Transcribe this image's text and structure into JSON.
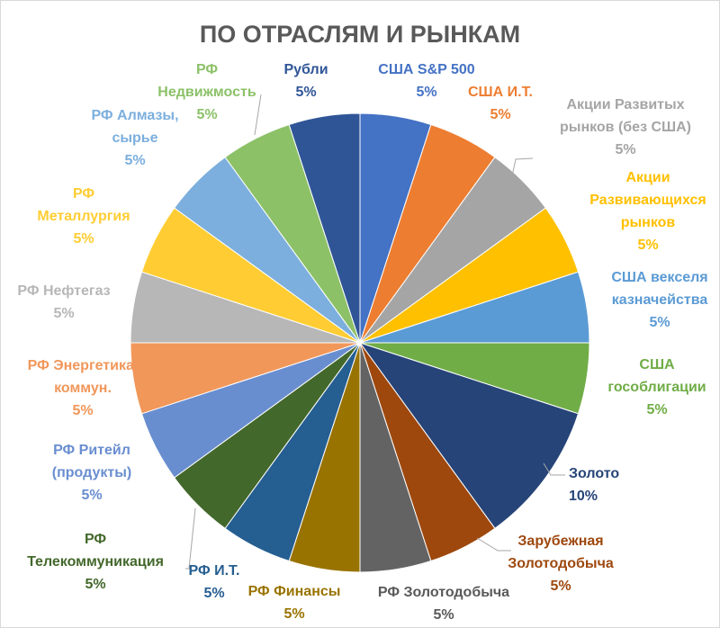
{
  "chart_data": {
    "type": "pie",
    "title": "ПО ОТРАСЛЯМ И РЫНКАМ",
    "slices": [
      {
        "label": [
          "США S&P 500"
        ],
        "value_label": "5%",
        "value": 5,
        "color": "#4472c4",
        "text_color": "#4472c4"
      },
      {
        "label": [
          "США И.Т."
        ],
        "value_label": "5%",
        "value": 5,
        "color": "#ed7d31",
        "text_color": "#ed7d31"
      },
      {
        "label": [
          "Акции Развитых",
          "рынков (без США)"
        ],
        "value_label": "5%",
        "value": 5,
        "color": "#a5a5a5",
        "text_color": "#a5a5a5"
      },
      {
        "label": [
          "Акции",
          "Развивающихся",
          "рынков"
        ],
        "value_label": "5%",
        "value": 5,
        "color": "#ffc000",
        "text_color": "#ffc000"
      },
      {
        "label": [
          "США векселя",
          "казначейства"
        ],
        "value_label": "5%",
        "value": 5,
        "color": "#5b9bd5",
        "text_color": "#5b9bd5"
      },
      {
        "label": [
          "США",
          "гособлигации"
        ],
        "value_label": "5%",
        "value": 5,
        "color": "#70ad47",
        "text_color": "#70ad47"
      },
      {
        "label": [
          "Золото"
        ],
        "value_label": "10%",
        "value": 10,
        "color": "#264478",
        "text_color": "#264478"
      },
      {
        "label": [
          "Зарубежная",
          "Золотодобыча"
        ],
        "value_label": "5%",
        "value": 5,
        "color": "#9e480e",
        "text_color": "#9e480e"
      },
      {
        "label": [
          "РФ Золотодобыча"
        ],
        "value_label": "5%",
        "value": 5,
        "color": "#636363",
        "text_color": "#595959"
      },
      {
        "label": [
          "РФ Финансы"
        ],
        "value_label": "5%",
        "value": 5,
        "color": "#997300",
        "text_color": "#997300"
      },
      {
        "label": [
          "РФ И.Т."
        ],
        "value_label": "5%",
        "value": 5,
        "color": "#255e91",
        "text_color": "#255e91"
      },
      {
        "label": [
          "РФ",
          "Телекоммуникация"
        ],
        "value_label": "5%",
        "value": 5,
        "color": "#43682b",
        "text_color": "#43682b"
      },
      {
        "label": [
          "РФ Ритейл",
          "(продукты)"
        ],
        "value_label": "5%",
        "value": 5,
        "color": "#698ed0",
        "text_color": "#698ed0"
      },
      {
        "label": [
          "РФ Энергетика,",
          "коммун."
        ],
        "value_label": "5%",
        "value": 5,
        "color": "#f1975a",
        "text_color": "#f1975a"
      },
      {
        "label": [
          "РФ Нефтегаз"
        ],
        "value_label": "5%",
        "value": 5,
        "color": "#b7b7b7",
        "text_color": "#b7b7b7"
      },
      {
        "label": [
          "РФ",
          "Металлургия"
        ],
        "value_label": "5%",
        "value": 5,
        "color": "#ffcd33",
        "text_color": "#ffcd33"
      },
      {
        "label": [
          "РФ Алмазы,",
          "сырье"
        ],
        "value_label": "5%",
        "value": 5,
        "color": "#7cafdd",
        "text_color": "#7cafdd"
      },
      {
        "label": [
          "РФ",
          "Недвижмость"
        ],
        "value_label": "5%",
        "value": 5,
        "color": "#8cc168",
        "text_color": "#8cc168"
      },
      {
        "label": [
          "Рубли"
        ],
        "value_label": "5%",
        "value": 5,
        "color": "#2f5597",
        "text_color": "#2f5597"
      }
    ],
    "legend": "none",
    "start": "top",
    "direction": "clockwise"
  }
}
